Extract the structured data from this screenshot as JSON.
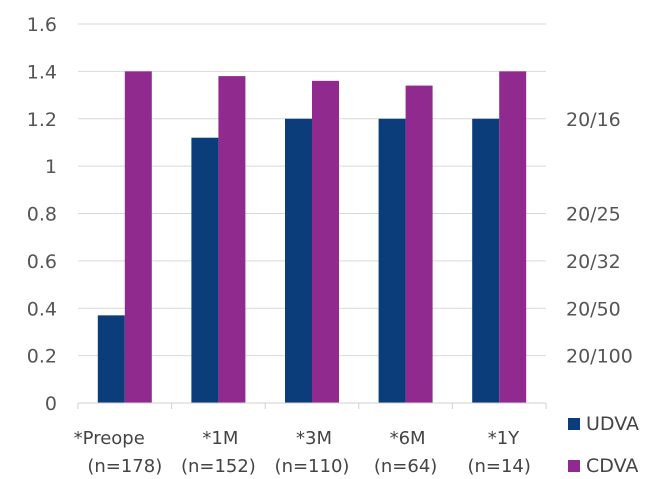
{
  "chart_data": {
    "type": "bar",
    "title": "",
    "xlabel": "",
    "ylabel": "",
    "ylim": [
      0,
      1.6
    ],
    "yticks": [
      "0",
      "0.2",
      "0.4",
      "0.6",
      "0.8",
      "1",
      "1.2",
      "1.4",
      "1.6"
    ],
    "grid": true,
    "categories": [
      {
        "line1": "*Preope",
        "line2": "(n=178)"
      },
      {
        "line1": "*1M",
        "line2": "(n=152)"
      },
      {
        "line1": "*3M",
        "line2": "(n=110)"
      },
      {
        "line1": "*6M",
        "line2": "(n=64)"
      },
      {
        "line1": "*1Y",
        "line2": "(n=14)"
      }
    ],
    "series": [
      {
        "name": "UDVA",
        "color": "#0a3d7a",
        "values": [
          0.37,
          1.12,
          1.2,
          1.2,
          1.2
        ]
      },
      {
        "name": "CDVA",
        "color": "#912a8e",
        "values": [
          1.4,
          1.38,
          1.36,
          1.34,
          1.4
        ]
      }
    ],
    "secondary_axis_labels": [
      {
        "label": "20/16",
        "value": 1.2
      },
      {
        "label": "20/25",
        "value": 0.8
      },
      {
        "label": "20/32",
        "value": 0.6
      },
      {
        "label": "20/50",
        "value": 0.4
      },
      {
        "label": "20/100",
        "value": 0.2
      }
    ],
    "legend_position": "bottom-right"
  }
}
